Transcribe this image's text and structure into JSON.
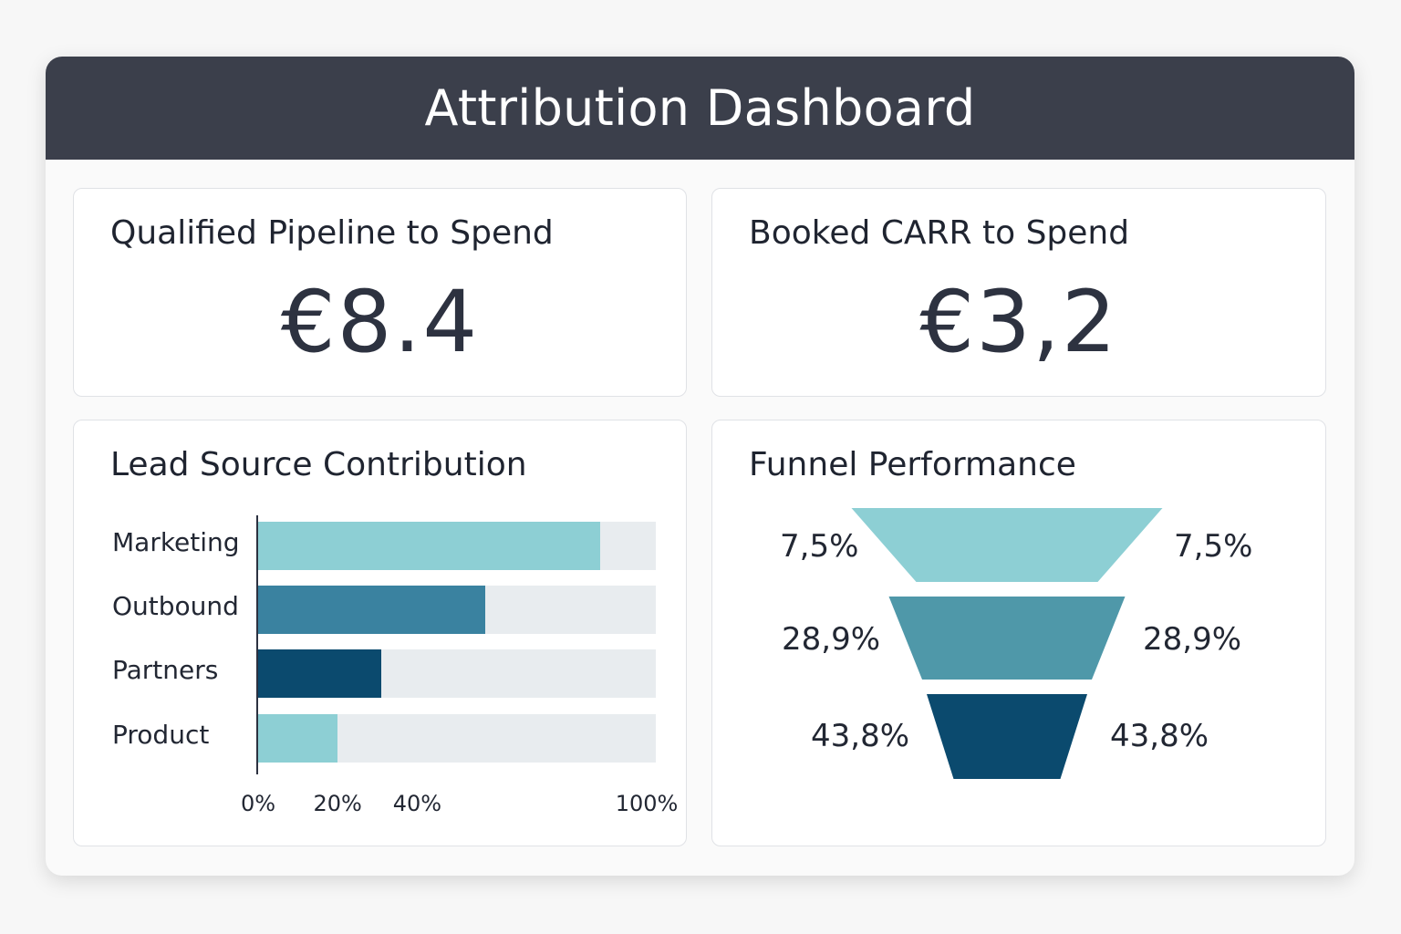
{
  "header": {
    "title": "Attribution Dashboard"
  },
  "kpis": [
    {
      "title": "Qualified Pipeline to Spend",
      "value": "€8.4"
    },
    {
      "title": "Booked CARR to Spend",
      "value": "€3,2"
    }
  ],
  "lead_source": {
    "title": "Lead Source Contribution"
  },
  "funnel": {
    "title": "Funnel Performance"
  },
  "colors": {
    "header_bg": "#3b3f4b",
    "light_teal": "#8dcfd4",
    "mid_teal": "#3a82a0",
    "mid_teal_funnel": "#4f98a9",
    "dark_navy": "#0b4a6e",
    "track": "#e8ecef"
  },
  "chart_data": [
    {
      "type": "bar",
      "orientation": "horizontal",
      "title": "Lead Source Contribution",
      "categories": [
        "Marketing",
        "Outbound",
        "Partners",
        "Product"
      ],
      "values": [
        86,
        57,
        31,
        20
      ],
      "colors": [
        "#8dcfd4",
        "#3a82a0",
        "#0b4a6e",
        "#8dcfd4"
      ],
      "xlim": [
        0,
        100
      ],
      "tick_values": [
        0,
        20,
        40,
        100
      ],
      "tick_labels": [
        "0%",
        "20%",
        "40%",
        "100%"
      ],
      "grid": false
    },
    {
      "type": "funnel",
      "title": "Funnel Performance",
      "stages": [
        {
          "left_label": "7,5%",
          "right_label": "7,5%",
          "value": 7.5,
          "color": "#8dcfd4"
        },
        {
          "left_label": "28,9%",
          "right_label": "28,9%",
          "value": 28.9,
          "color": "#4f98a9"
        },
        {
          "left_label": "43,8%",
          "right_label": "43,8%",
          "value": 43.8,
          "color": "#0b4a6e"
        }
      ]
    }
  ]
}
